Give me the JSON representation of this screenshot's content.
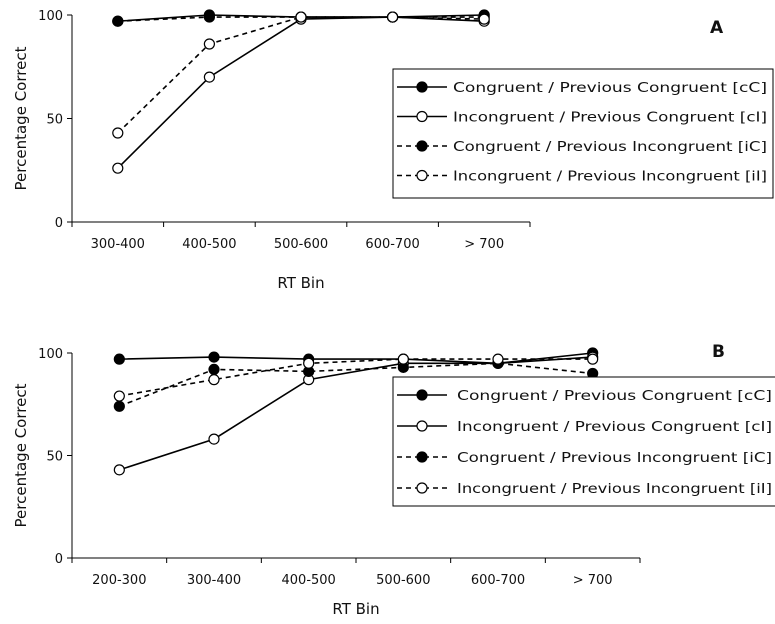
{
  "chart_data": [
    {
      "panel": "A",
      "type": "line",
      "xlabel": "RT Bin",
      "ylabel": "Percentage Correct",
      "ylim": [
        0,
        100
      ],
      "yticks": [
        "0",
        "50",
        "100"
      ],
      "categories": [
        "300-400",
        "400-500",
        "500-600",
        "600-700",
        "> 700"
      ],
      "series": [
        {
          "name": "Congruent / Previous Congruent [cC]",
          "values": [
            97,
            100,
            99,
            99,
            100
          ]
        },
        {
          "name": "Incongruent / Previous Congruent [cI]",
          "values": [
            26,
            70,
            98,
            99,
            97
          ]
        },
        {
          "name": "Congruent / Previous Incongruent [iC]",
          "values": [
            97,
            99,
            99,
            99,
            99
          ]
        },
        {
          "name": "Incongruent / Previous Incongruent [iI]",
          "values": [
            43,
            86,
            99,
            99,
            98
          ]
        }
      ],
      "grid": false,
      "legend": "right"
    },
    {
      "panel": "B",
      "type": "line",
      "xlabel": "RT Bin",
      "ylabel": "Percentage Correct",
      "ylim": [
        0,
        100
      ],
      "yticks": [
        "0",
        "50",
        "100"
      ],
      "categories": [
        "200-300",
        "300-400",
        "400-500",
        "500-600",
        "600-700",
        "> 700"
      ],
      "series": [
        {
          "name": "Congruent / Previous Congruent [cC]",
          "values": [
            97,
            98,
            97,
            97,
            95,
            100
          ]
        },
        {
          "name": "Incongruent / Previous Congruent [cI]",
          "values": [
            43,
            58,
            87,
            95,
            95,
            98
          ]
        },
        {
          "name": "Congruent / Previous Incongruent [iC]",
          "values": [
            74,
            92,
            91,
            93,
            95,
            90
          ]
        },
        {
          "name": "Incongruent / Previous Incongruent [iI]",
          "values": [
            79,
            87,
            95,
            97,
            97,
            97
          ]
        }
      ],
      "grid": false,
      "legend": "right"
    }
  ]
}
